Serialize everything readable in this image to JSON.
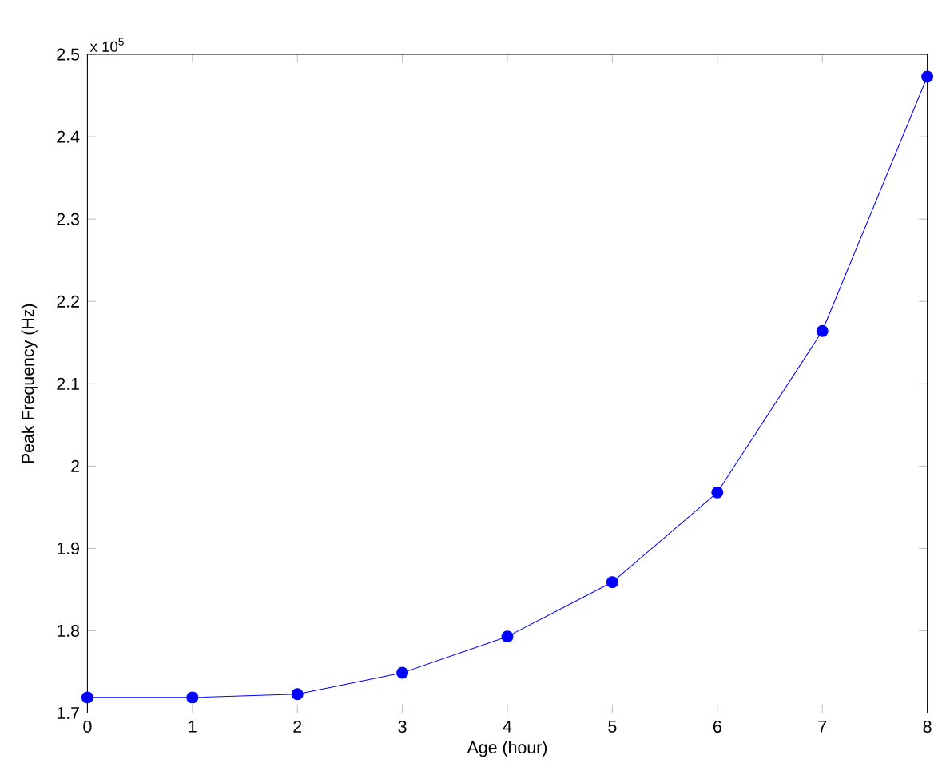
{
  "chart_data": {
    "type": "line",
    "xlabel": "Age (hour)",
    "ylabel": "Peak Frequency (Hz)",
    "annotations": [
      "x 10$^{5}$"
    ],
    "x": [
      0,
      1,
      2,
      3,
      4,
      5,
      6,
      7,
      8
    ],
    "series": [
      {
        "color": "#0000ff",
        "values": [
          1.719,
          1.719,
          1.723,
          1.749,
          1.793,
          1.859,
          1.968,
          2.164,
          2.473
        ]
      }
    ],
    "xlim": [
      0,
      8
    ],
    "ylim": [
      1.7,
      2.5
    ],
    "xticks": [
      0,
      1,
      2,
      3,
      4,
      5,
      6,
      7,
      8
    ],
    "yticks": [
      1.7,
      1.8,
      1.9,
      2,
      2.1,
      2.2,
      2.3,
      2.4,
      2.5
    ],
    "marker": "circle",
    "line_style": "solid",
    "grid": false
  }
}
